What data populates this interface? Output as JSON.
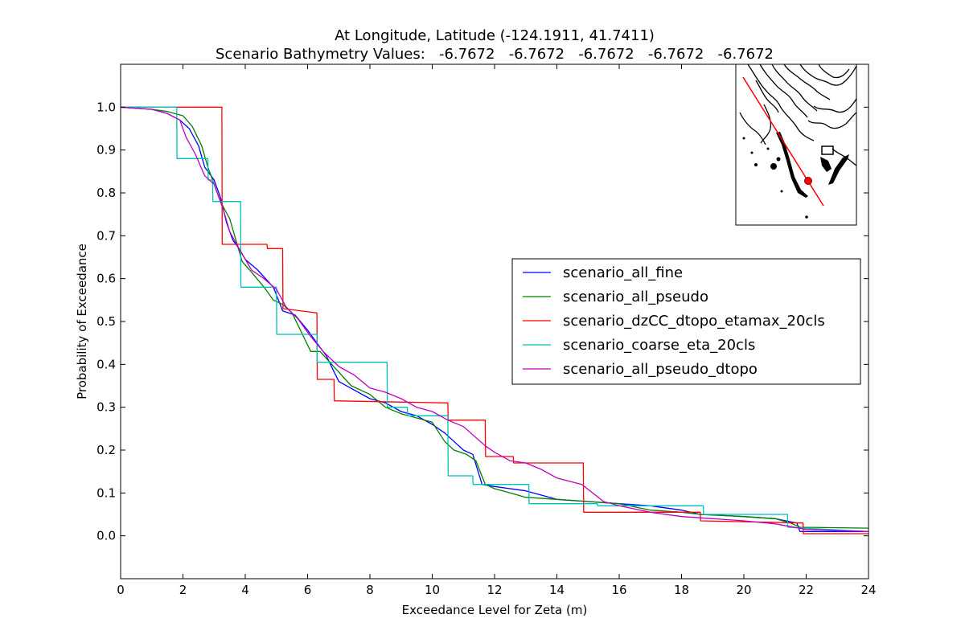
{
  "chart_data": {
    "type": "line",
    "title": "At Longitude, Latitude (-124.1911,  41.7411)",
    "subtitle": "Scenario Bathymetry Values:   -6.7672   -6.7672   -6.7672   -6.7672   -6.7672",
    "xlabel": "Exceedance Level for Zeta (m)",
    "ylabel": "Probability of Exceedance",
    "xlim": [
      0,
      24
    ],
    "ylim": [
      -0.1,
      1.1
    ],
    "xticks": [
      "0",
      "2",
      "4",
      "6",
      "8",
      "10",
      "12",
      "14",
      "16",
      "18",
      "20",
      "22",
      "24"
    ],
    "yticks": [
      "0.0",
      "0.1",
      "0.2",
      "0.3",
      "0.4",
      "0.5",
      "0.6",
      "0.7",
      "0.8",
      "0.9",
      "1.0"
    ],
    "grid": false,
    "legend_position": "center-right",
    "inset_map": {
      "marker_color": "#ff0000",
      "line_color": "#ff0000"
    },
    "series": [
      {
        "name": "scenario_all_fine",
        "color": "#0000ff",
        "x": [
          0,
          1.0,
          1.5,
          1.9,
          2.2,
          2.5,
          2.7,
          3.0,
          3.2,
          3.4,
          3.6,
          3.8,
          4.0,
          4.4,
          4.9,
          5.2,
          5.6,
          6.0,
          6.3,
          6.6,
          7.0,
          7.5,
          8.0,
          8.5,
          9.0,
          9.5,
          10.0,
          10.4,
          10.7,
          11.0,
          11.3,
          11.6,
          12.0,
          13.0,
          14.0,
          15.0,
          16.0,
          17.0,
          18.0,
          18.6,
          20.0,
          21.0,
          21.7,
          21.8,
          24.0
        ],
        "y": [
          1.0,
          0.995,
          0.985,
          0.97,
          0.95,
          0.91,
          0.86,
          0.83,
          0.79,
          0.73,
          0.69,
          0.67,
          0.645,
          0.62,
          0.58,
          0.525,
          0.515,
          0.48,
          0.45,
          0.42,
          0.36,
          0.34,
          0.32,
          0.31,
          0.29,
          0.28,
          0.26,
          0.24,
          0.22,
          0.2,
          0.19,
          0.12,
          0.115,
          0.105,
          0.085,
          0.08,
          0.075,
          0.07,
          0.06,
          0.05,
          0.045,
          0.04,
          0.03,
          0.01,
          0.01
        ]
      },
      {
        "name": "scenario_all_pseudo",
        "color": "#008000",
        "x": [
          0,
          1.0,
          1.5,
          2.0,
          2.3,
          2.6,
          2.8,
          3.0,
          3.2,
          3.5,
          3.7,
          3.9,
          4.2,
          4.6,
          4.9,
          5.2,
          5.5,
          5.8,
          6.1,
          6.4,
          6.9,
          7.4,
          8.0,
          8.5,
          9.0,
          9.5,
          10.0,
          10.4,
          10.7,
          11.1,
          11.4,
          11.7,
          12.0,
          12.5,
          13.0,
          14.0,
          15.0,
          16.0,
          17.0,
          18.0,
          18.6,
          20.0,
          21.0,
          21.5,
          21.8,
          24.0
        ],
        "y": [
          1.0,
          0.995,
          0.99,
          0.98,
          0.955,
          0.91,
          0.86,
          0.82,
          0.78,
          0.74,
          0.69,
          0.64,
          0.615,
          0.58,
          0.55,
          0.54,
          0.52,
          0.475,
          0.43,
          0.43,
          0.39,
          0.35,
          0.33,
          0.3,
          0.285,
          0.275,
          0.265,
          0.22,
          0.2,
          0.19,
          0.175,
          0.12,
          0.11,
          0.1,
          0.09,
          0.085,
          0.08,
          0.075,
          0.06,
          0.055,
          0.05,
          0.045,
          0.04,
          0.03,
          0.02,
          0.018
        ]
      },
      {
        "name": "scenario_dzCC_dtopo_etamax_20cls",
        "color": "#ff0000",
        "x": [
          0,
          3.25,
          3.26,
          4.7,
          4.71,
          5.2,
          5.21,
          6.3,
          6.31,
          6.85,
          6.86,
          10.5,
          10.51,
          11.7,
          11.71,
          12.6,
          12.61,
          14.85,
          14.86,
          18.6,
          18.61,
          21.9,
          21.91,
          24.0
        ],
        "y": [
          1.0,
          1.0,
          0.68,
          0.68,
          0.67,
          0.67,
          0.53,
          0.52,
          0.365,
          0.365,
          0.315,
          0.31,
          0.27,
          0.27,
          0.185,
          0.185,
          0.17,
          0.17,
          0.055,
          0.055,
          0.035,
          0.03,
          0.005,
          0.005
        ]
      },
      {
        "name": "scenario_coarse_eta_20cls",
        "color": "#00bfbf",
        "x": [
          0,
          1.8,
          1.81,
          2.8,
          2.81,
          2.95,
          2.96,
          3.85,
          3.86,
          5.0,
          5.01,
          6.3,
          6.31,
          8.55,
          8.56,
          9.2,
          9.21,
          10.5,
          10.51,
          11.3,
          11.31,
          13.1,
          13.11,
          15.3,
          15.31,
          18.7,
          18.71,
          21.4,
          21.41,
          24.0
        ],
        "y": [
          1.0,
          1.0,
          0.88,
          0.88,
          0.83,
          0.83,
          0.78,
          0.78,
          0.58,
          0.58,
          0.47,
          0.47,
          0.405,
          0.405,
          0.3,
          0.3,
          0.28,
          0.28,
          0.14,
          0.14,
          0.12,
          0.12,
          0.075,
          0.075,
          0.07,
          0.07,
          0.05,
          0.05,
          0.02,
          0.01
        ]
      },
      {
        "name": "scenario_all_pseudo_dtopo",
        "color": "#bf00bf",
        "x": [
          0,
          1.0,
          1.5,
          1.9,
          2.1,
          2.4,
          2.7,
          3.0,
          3.3,
          3.5,
          3.8,
          4.2,
          4.6,
          5.0,
          5.3,
          5.7,
          6.1,
          6.5,
          7.0,
          7.5,
          8.0,
          8.5,
          9.0,
          9.5,
          10.0,
          10.5,
          11.0,
          11.7,
          12.0,
          12.5,
          13.0,
          13.5,
          14.0,
          14.8,
          15.5,
          16.0,
          17.0,
          18.0,
          19.0,
          20.0,
          21.0,
          22.0,
          24.0
        ],
        "y": [
          1.0,
          0.995,
          0.985,
          0.97,
          0.93,
          0.89,
          0.84,
          0.82,
          0.76,
          0.71,
          0.67,
          0.62,
          0.6,
          0.575,
          0.535,
          0.505,
          0.465,
          0.43,
          0.395,
          0.375,
          0.345,
          0.335,
          0.32,
          0.3,
          0.29,
          0.27,
          0.255,
          0.21,
          0.195,
          0.175,
          0.17,
          0.155,
          0.135,
          0.12,
          0.08,
          0.07,
          0.055,
          0.045,
          0.04,
          0.035,
          0.028,
          0.015,
          0.01
        ]
      }
    ]
  }
}
